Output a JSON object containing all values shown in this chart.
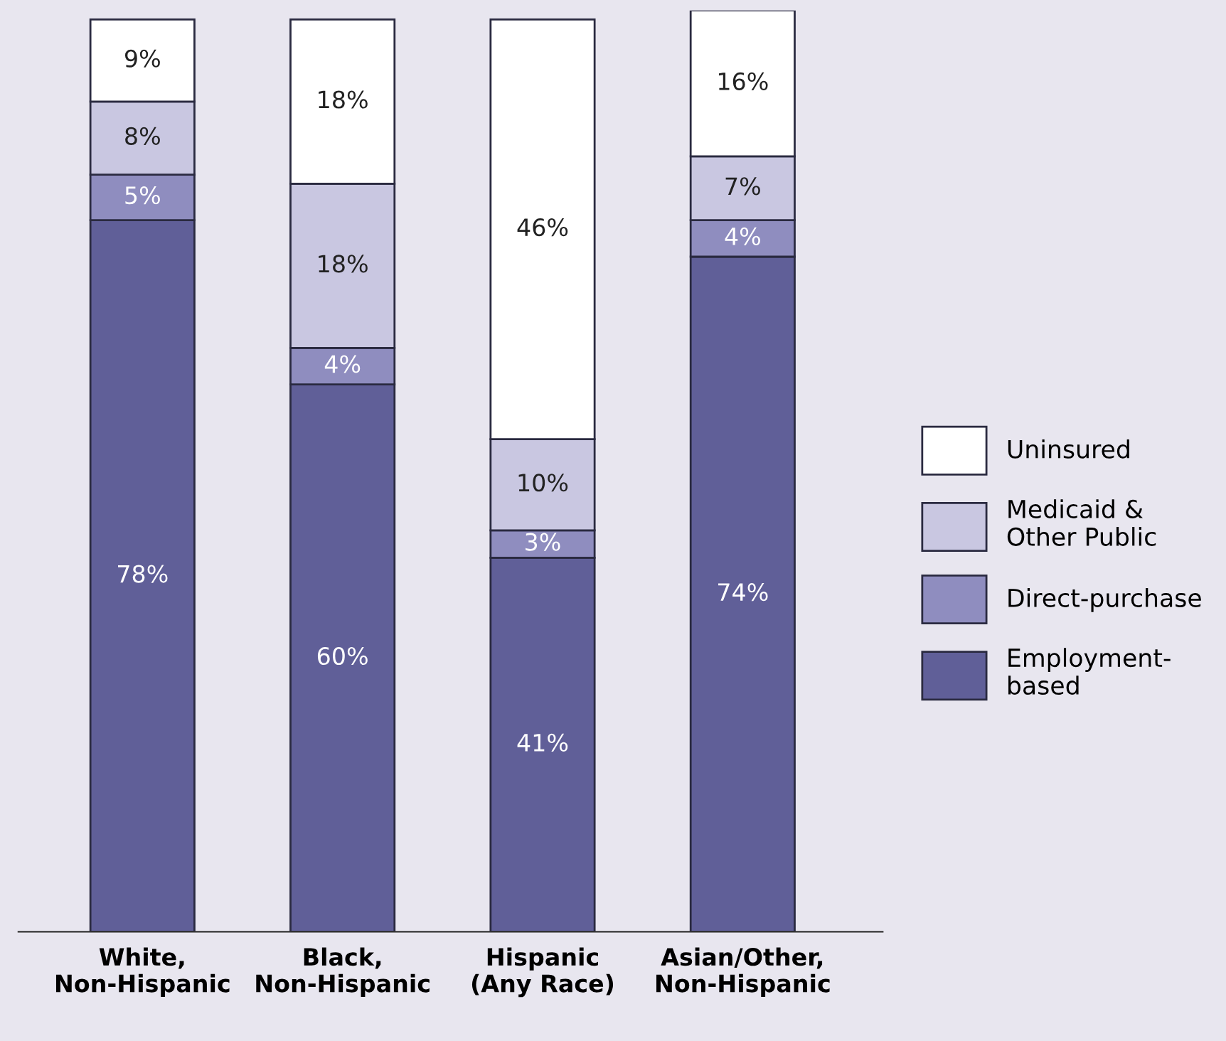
{
  "chart_data": {
    "type": "bar",
    "stacked": true,
    "legend": "right",
    "grid": false,
    "categories": [
      "White,\nNon-Hispanic",
      "Black,\nNon-Hispanic",
      "Hispanic\n(Any Race)",
      "Asian/Other,\nNon-Hispanic"
    ],
    "series": [
      {
        "name": "Employment-\nbased",
        "color": "#605f98",
        "values": [
          78,
          60,
          41,
          74
        ],
        "value_labels": [
          "78%",
          "60%",
          "41%",
          "74%"
        ]
      },
      {
        "name": "Direct-purchase",
        "color": "#8f8dbf",
        "values": [
          5,
          4,
          3,
          4
        ],
        "value_labels": [
          "5%",
          "4%",
          "3%",
          "4%"
        ]
      },
      {
        "name": "Medicaid &\nOther Public",
        "color": "#c9c7e1",
        "values": [
          8,
          18,
          10,
          7
        ],
        "value_labels": [
          "8%",
          "18%",
          "10%",
          "7%"
        ]
      },
      {
        "name": "Uninsured",
        "color": "#ffffff",
        "values": [
          9,
          18,
          46,
          16
        ],
        "value_labels": [
          "9%",
          "18%",
          "46%",
          "16%"
        ]
      }
    ]
  }
}
